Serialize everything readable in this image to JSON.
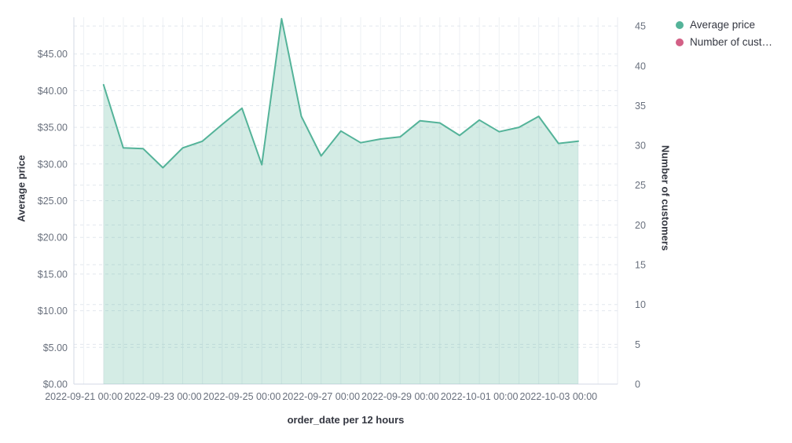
{
  "legend": {
    "items": [
      {
        "label": "Average price",
        "color": "#54b399"
      },
      {
        "label": "Number of cust…",
        "color": "#d36086"
      }
    ]
  },
  "chart_data": {
    "type": "area",
    "title": "",
    "xlabel": "order_date per 12 hours",
    "ylabel_left": "Average price",
    "ylabel_right": "Number of customers",
    "legend_position": "top-right",
    "grid": true,
    "y_left_range": [
      0,
      50
    ],
    "y_right_range": [
      0,
      46.1
    ],
    "y_left_tick_labels": [
      "$0.00",
      "$5.00",
      "$10.00",
      "$15.00",
      "$20.00",
      "$25.00",
      "$30.00",
      "$35.00",
      "$40.00",
      "$45.00"
    ],
    "y_left_tick_values": [
      0,
      5,
      10,
      15,
      20,
      25,
      30,
      35,
      40,
      45
    ],
    "y_right_tick_labels": [
      "0",
      "5",
      "10",
      "15",
      "20",
      "25",
      "30",
      "35",
      "40",
      "45"
    ],
    "y_right_tick_values": [
      0,
      5,
      10,
      15,
      20,
      25,
      30,
      35,
      40,
      45
    ],
    "x_tick_labels": [
      "2022-09-21 00:00",
      "2022-09-23 00:00",
      "2022-09-25 00:00",
      "2022-09-27 00:00",
      "2022-09-29 00:00",
      "2022-10-01 00:00",
      "2022-10-03 00:00"
    ],
    "series": [
      {
        "name": "Average price",
        "type": "area",
        "color": "#54b399",
        "fill_opacity": 0.25,
        "x": [
          "2022-09-21 12:00",
          "2022-09-22 00:00",
          "2022-09-22 12:00",
          "2022-09-23 00:00",
          "2022-09-23 12:00",
          "2022-09-24 00:00",
          "2022-09-24 12:00",
          "2022-09-25 00:00",
          "2022-09-25 12:00",
          "2022-09-26 00:00",
          "2022-09-26 12:00",
          "2022-09-27 00:00",
          "2022-09-27 12:00",
          "2022-09-28 00:00",
          "2022-09-28 12:00",
          "2022-09-29 00:00",
          "2022-09-29 12:00",
          "2022-09-30 00:00",
          "2022-09-30 12:00",
          "2022-10-01 00:00",
          "2022-10-01 12:00",
          "2022-10-02 00:00",
          "2022-10-02 12:00",
          "2022-10-03 00:00",
          "2022-10-03 12:00"
        ],
        "values": [
          40.8,
          32.2,
          32.1,
          29.5,
          32.2,
          33.1,
          35.4,
          37.6,
          29.9,
          49.8,
          36.5,
          31.1,
          34.5,
          32.9,
          33.4,
          33.7,
          35.9,
          35.6,
          33.9,
          36.0,
          34.4,
          35.0,
          36.5,
          32.8,
          33.1
        ]
      },
      {
        "name": "Number of customers",
        "type": "line",
        "color": "#d36086",
        "x": [],
        "values": []
      }
    ]
  }
}
